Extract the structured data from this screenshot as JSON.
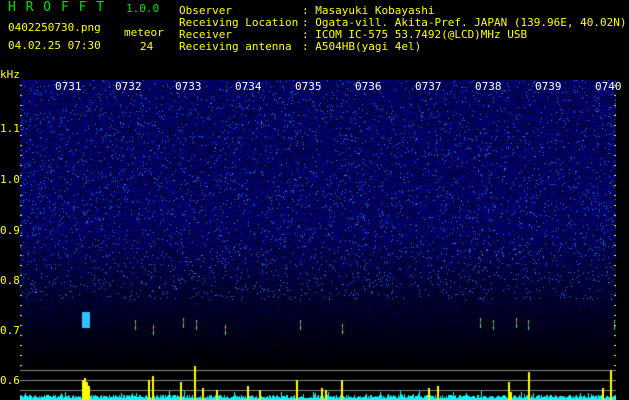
{
  "header": {
    "app_name": "H R O F F T",
    "version": "1.0.0",
    "filename": "0402250730.png",
    "datetime": "04.02.25 07:30",
    "meteor_label": "meteor",
    "meteor_count": "24"
  },
  "info": {
    "observer_label": "Observer",
    "observer": ": Masayuki Kobayashi",
    "location_label": "Receiving Location",
    "location": ": Ogata-vill. Akita-Pref. JAPAN (139.96E, 40.02N)",
    "receiver_label": "Receiver",
    "receiver": ": ICOM IC-575 53.7492(@LCD)MHz USB",
    "antenna_label": "Receiving antenna",
    "antenna": ": A504HB(yagi 4el)"
  },
  "axis": {
    "unit": "kHz",
    "y_ticks": [
      "1.1",
      "1.0",
      "0.9",
      "0.8",
      "0.7",
      "0.6"
    ],
    "time_ticks": [
      "0731",
      "0732",
      "0733",
      "0734",
      "0735",
      "0736",
      "0737",
      "0738",
      "0739",
      "0740"
    ]
  },
  "colors": {
    "background": "#000000",
    "text": "#ffff00",
    "title": "#00e000",
    "noise": "#1020c0",
    "spectrum": "#00ffff",
    "peak": "#ffff00"
  }
}
